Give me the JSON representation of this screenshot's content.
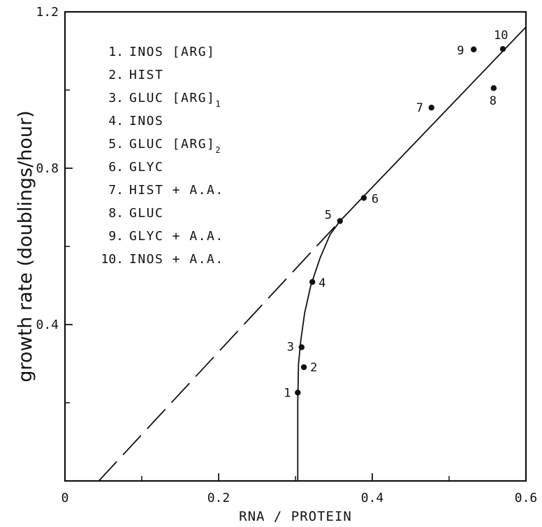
{
  "chart_data": {
    "type": "scatter",
    "title": "",
    "xlabel": "RNA / PROTEIN",
    "ylabel": "growth rate (doublings/hour)",
    "xlim": [
      0,
      0.6
    ],
    "ylim": [
      0,
      1.2
    ],
    "x_ticks": [
      0,
      0.2,
      0.4,
      0.6
    ],
    "x_tick_labels": [
      "0",
      "0.2",
      "0.4",
      "0.6"
    ],
    "y_ticks": [
      0.4,
      0.8,
      1.2
    ],
    "y_tick_labels": [
      "0.4",
      "0.8",
      "1.2"
    ],
    "minor_x_ticks": [
      0.1,
      0.3,
      0.5
    ],
    "minor_y_ticks": [
      0.2,
      0.6,
      1.0
    ],
    "grid": false,
    "points": [
      {
        "label": "1",
        "x": 0.303,
        "y": 0.226
      },
      {
        "label": "2",
        "x": 0.311,
        "y": 0.291
      },
      {
        "label": "3",
        "x": 0.308,
        "y": 0.342
      },
      {
        "label": "4",
        "x": 0.322,
        "y": 0.509
      },
      {
        "label": "5",
        "x": 0.358,
        "y": 0.665
      },
      {
        "label": "6",
        "x": 0.389,
        "y": 0.724
      },
      {
        "label": "7",
        "x": 0.477,
        "y": 0.955
      },
      {
        "label": "8",
        "x": 0.558,
        "y": 1.005
      },
      {
        "label": "9",
        "x": 0.532,
        "y": 1.104
      },
      {
        "label": "10",
        "x": 0.57,
        "y": 1.105
      }
    ],
    "fit_line": {
      "x": [
        0.358,
        0.6
      ],
      "y": [
        0.665,
        1.161
      ]
    },
    "dashed_extension": {
      "x": [
        0.044,
        0.358
      ],
      "y": [
        0.0,
        0.665
      ]
    },
    "low_growth_curve": {
      "x": [
        0.303,
        0.303,
        0.304,
        0.307,
        0.312,
        0.32,
        0.332,
        0.345,
        0.358
      ],
      "y": [
        0.0,
        0.2,
        0.3,
        0.36,
        0.43,
        0.5,
        0.57,
        0.63,
        0.665
      ]
    },
    "legend": [
      {
        "num": "1.",
        "label": "INOS [ARG]"
      },
      {
        "num": "2.",
        "label": "HIST"
      },
      {
        "num": "3.",
        "label": "GLUC [ARG]",
        "sub": "1"
      },
      {
        "num": "4.",
        "label": "INOS"
      },
      {
        "num": "5.",
        "label": "GLUC [ARG]",
        "sub": "2"
      },
      {
        "num": "6.",
        "label": "GLYC"
      },
      {
        "num": "7.",
        "label": "HIST + A.A."
      },
      {
        "num": "8.",
        "label": "GLUC"
      },
      {
        "num": "9.",
        "label": "GLYC + A.A."
      },
      {
        "num": "10.",
        "label": "INOS + A.A."
      }
    ],
    "legend_placement": "top-left"
  }
}
